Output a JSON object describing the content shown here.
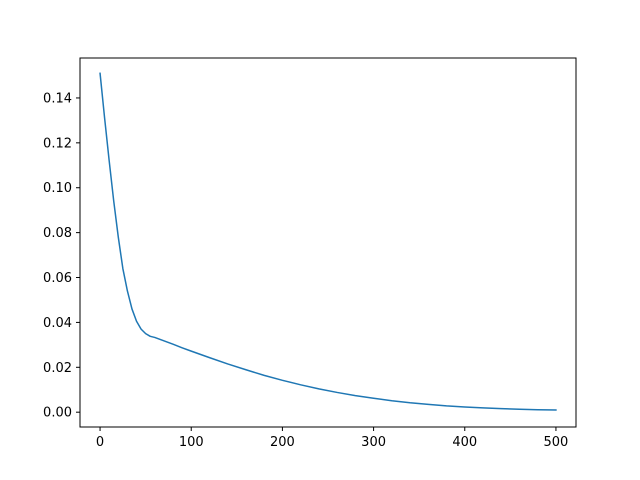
{
  "chart_data": {
    "type": "line",
    "title": "",
    "xlabel": "",
    "ylabel": "",
    "xlim": [
      -22,
      522
    ],
    "ylim": [
      -0.0066,
      0.1578
    ],
    "xticks": [
      0,
      100,
      200,
      300,
      400,
      500
    ],
    "yticks": [
      0.0,
      0.02,
      0.04,
      0.06,
      0.08,
      0.1,
      0.12,
      0.14
    ],
    "xtick_labels": [
      "0",
      "100",
      "200",
      "300",
      "400",
      "500"
    ],
    "ytick_labels": [
      "0.00",
      "0.02",
      "0.04",
      "0.06",
      "0.08",
      "0.10",
      "0.12",
      "0.14"
    ],
    "grid": false,
    "series": [
      {
        "color": "#1f77b4",
        "x": [
          0,
          5,
          10,
          15,
          20,
          25,
          30,
          35,
          40,
          45,
          50,
          55,
          60,
          70,
          80,
          90,
          100,
          120,
          140,
          160,
          180,
          200,
          220,
          240,
          260,
          280,
          300,
          320,
          340,
          360,
          380,
          400,
          420,
          440,
          460,
          480,
          500
        ],
        "y": [
          0.151,
          0.131,
          0.112,
          0.094,
          0.078,
          0.064,
          0.054,
          0.046,
          0.0405,
          0.037,
          0.035,
          0.0338,
          0.0333,
          0.0318,
          0.0303,
          0.0287,
          0.0272,
          0.0243,
          0.0215,
          0.0189,
          0.0164,
          0.0142,
          0.0122,
          0.0104,
          0.0088,
          0.0074,
          0.0062,
          0.0051,
          0.0042,
          0.0035,
          0.0028,
          0.0023,
          0.0019,
          0.0016,
          0.0013,
          0.0011,
          0.001
        ]
      }
    ]
  }
}
